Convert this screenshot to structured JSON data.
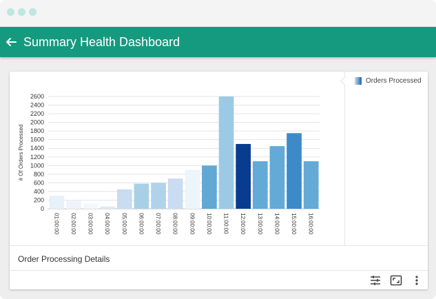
{
  "window": {
    "icons": [
      "close-dot",
      "minimize-dot",
      "zoom-dot"
    ]
  },
  "appbar": {
    "title": "Summary Health Dashboard",
    "back_icon": "arrow-left-icon",
    "color": "#159a80"
  },
  "card": {
    "legend_label": "Orders Processed",
    "footer_title": "Order Processing Details",
    "tools": [
      "tune-icon",
      "fullscreen-icon",
      "more-vert-icon"
    ]
  },
  "chart_data": {
    "type": "bar",
    "ylabel": "# Of Orders Processed",
    "xlabel": "",
    "ylim": [
      0,
      2600
    ],
    "yticks": [
      0,
      200,
      400,
      600,
      800,
      1000,
      1200,
      1400,
      1600,
      1800,
      2000,
      2200,
      2400,
      2600
    ],
    "grid": true,
    "legend": "right",
    "categories": [
      "01:00:00",
      "02:00:00",
      "03:00:00",
      "04:00:00",
      "05:00:00",
      "06:00:00",
      "07:00:00",
      "08:00:00",
      "09:00:00",
      "10:00:00",
      "11:00:00",
      "12:00:00",
      "13:00:00",
      "14:00:00",
      "15:00:00",
      "16:00:00"
    ],
    "series": [
      {
        "name": "Orders Processed",
        "values": [
          300,
          200,
          120,
          50,
          450,
          580,
          600,
          700,
          900,
          1000,
          2600,
          1500,
          1100,
          1450,
          1750,
          1100
        ],
        "colors": [
          "#e8f0fa",
          "#eef3fb",
          "#f3f7fc",
          "#dce9f6",
          "#c9dcf1",
          "#a9cfe7",
          "#b1d3ea",
          "#c9dcf1",
          "#eef4fb",
          "#61a8d5",
          "#9ccae5",
          "#083c8f",
          "#63aad6",
          "#63aad6",
          "#3d8ac9",
          "#63aad6"
        ]
      }
    ]
  }
}
